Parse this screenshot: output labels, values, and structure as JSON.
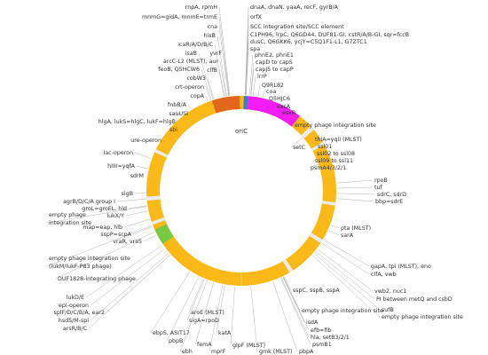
{
  "center_label": "oriC",
  "labels": [
    "rnpA, rpmH",
    "mnmG=gidA, mnmE=trmE",
    "cna",
    "hisB",
    "icaR/A/D/B/C",
    "isaB",
    "yvrF",
    "arcC-L2 (MLST), aur",
    "feoB, Q5HCW6",
    "clfB",
    "cobW3",
    "crt-operon",
    "copA",
    "fnbB/A",
    "sauUSI",
    "hlgA, lukS=hlgC, lukF=hlgB",
    "sbi",
    "ure-operon",
    "lac-operon",
    "hlIII=yqfA",
    "sdrM",
    "sigB",
    "agrB/D/C/A group I",
    "groL=groEL, hld",
    "lukX/Y",
    "empty phage",
    "integration site",
    "map=eap, hlb",
    "sspP=scpA",
    "vraR, vraS",
    "empty phage integration site",
    "(lukM/lukF-P83 phage)",
    "DUF1828-integrating phage",
    "lukD/E",
    "epi-operon",
    "splF/D/C/B/A, ear2",
    "hsdS/M-spl",
    "arsR/B/C",
    "aroE (MLST)",
    "sigA=rpoD",
    "ebpS, ASIT17",
    "pbpB",
    "ebh",
    "femA",
    "katA",
    "mprF",
    "glpF (MLST)",
    "gmk (MLST)",
    "pbpA",
    "psmB1",
    "hla, setB3/2/1",
    "efb=fib",
    "isdA",
    "empty phage integration site",
    "sspC, sspB, sspA",
    "gapA, tpi (MLST), eno",
    "clfA, vwb",
    "vwb2, nuc1",
    "PI between metQ and csbD",
    "sufB",
    "empty phage integration site",
    "pta (MLST)",
    "sarA",
    "rpoB",
    "tuf",
    "sdrC, sdrD",
    "bbp=sdrE",
    "psmA4/3/2/1",
    "ssl09 to ssl11",
    "ssl02 to ssl08",
    "ssl01",
    "setC",
    "thlA=yqiI (MLST)",
    "empty phage integration site",
    "esxB",
    "exsA",
    "Q5HJC6",
    "coa",
    "Q9RL82",
    "lrrP",
    "capJ5 to capP",
    "capD to capS",
    "phnE2, phnE1",
    "spa",
    "dusC, Q6GKK6, ycjY=C5Q1F1-L1, G7ZTC1",
    "C1PH96, lrpC, Q6GD44, DUF81-GI, cstR/A/B-GI, sqr=fccB",
    "SCC integration site/SCC element",
    "orfX",
    "dnaA, dnaN, yaaA, recF, gyrB/A"
  ]
}
